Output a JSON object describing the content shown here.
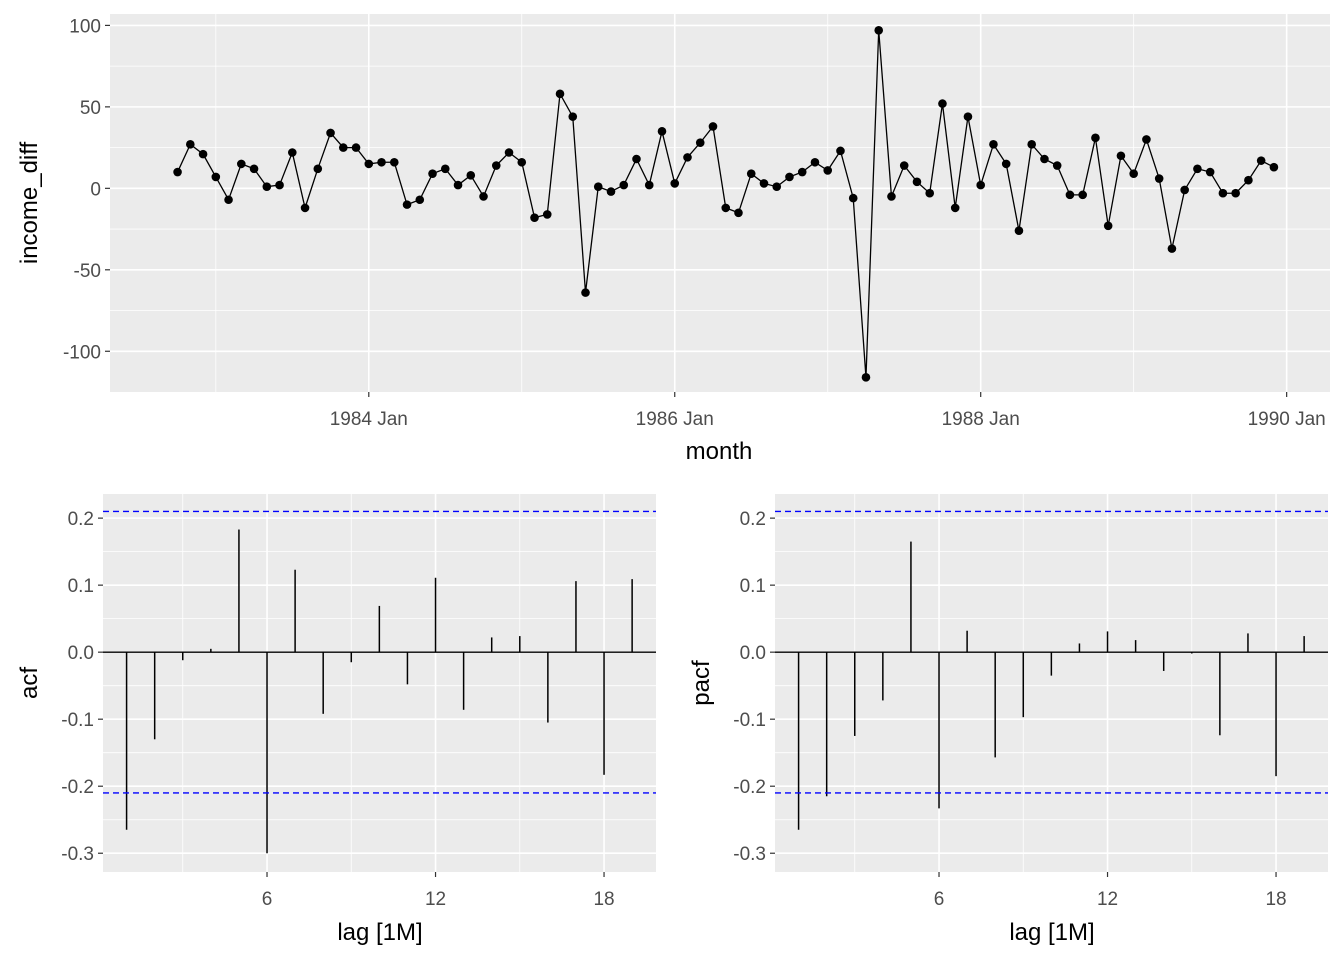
{
  "chart_data": [
    {
      "type": "line",
      "title": "",
      "xlabel": "month",
      "ylabel": "income_diff",
      "x_start": "1982 Oct",
      "x_end": "1989 Dec",
      "frequency": "monthly",
      "ylim": [
        -125,
        107
      ],
      "xticks": [
        "1984 Jan",
        "1986 Jan",
        "1988 Jan",
        "1990 Jan"
      ],
      "yticks": [
        -100,
        -50,
        0,
        50,
        100
      ],
      "grid": true,
      "values": [
        10,
        27,
        21,
        7,
        -7,
        15,
        12,
        1,
        2,
        22,
        -12,
        12,
        34,
        25,
        25,
        15,
        16,
        16,
        -10,
        -7,
        9,
        12,
        2,
        8,
        -5,
        14,
        22,
        16,
        -18,
        -16,
        58,
        44,
        -64,
        1,
        -2,
        2,
        18,
        2,
        35,
        3,
        19,
        28,
        38,
        -12,
        -15,
        9,
        3,
        1,
        7,
        10,
        16,
        11,
        23,
        -6,
        -116,
        97,
        -5,
        14,
        4,
        -3,
        52,
        -12,
        44,
        2,
        27,
        15,
        -26,
        27,
        18,
        14,
        -4,
        -4,
        31,
        -23,
        20,
        9,
        30,
        6,
        -37,
        -1,
        12,
        10,
        -3,
        -3,
        5,
        17,
        13
      ]
    },
    {
      "type": "bar",
      "title": "",
      "xlabel": "lag [1M]",
      "ylabel": "acf",
      "lags": [
        1,
        2,
        3,
        4,
        5,
        6,
        7,
        8,
        9,
        10,
        11,
        12,
        13,
        14,
        15,
        16,
        17,
        18,
        19
      ],
      "values": [
        -0.265,
        -0.13,
        -0.012,
        0.005,
        0.183,
        -0.3,
        0.123,
        -0.092,
        -0.015,
        0.069,
        -0.048,
        0.111,
        -0.086,
        0.022,
        0.024,
        -0.105,
        0.106,
        -0.183,
        0.109
      ],
      "confidence_bound": 0.21,
      "xticks": [
        6,
        12,
        18
      ],
      "yticks": [
        "-0.3",
        "-0.2",
        "-0.1",
        "0.0",
        "0.1",
        "0.2"
      ],
      "ylim": [
        -0.328,
        0.236
      ],
      "xlim": [
        0.16,
        19.85
      ],
      "grid": true
    },
    {
      "type": "bar",
      "title": "",
      "xlabel": "lag [1M]",
      "ylabel": "pacf",
      "lags": [
        1,
        2,
        3,
        4,
        5,
        6,
        7,
        8,
        9,
        10,
        11,
        12,
        13,
        14,
        15,
        16,
        17,
        18,
        19
      ],
      "values": [
        -0.265,
        -0.215,
        -0.125,
        -0.072,
        0.165,
        -0.233,
        0.032,
        -0.157,
        -0.097,
        -0.035,
        0.013,
        0.031,
        0.018,
        -0.028,
        -0.002,
        -0.124,
        0.028,
        -0.185,
        0.024
      ],
      "confidence_bound": 0.21,
      "xticks": [
        6,
        12,
        18
      ],
      "yticks": [
        "-0.3",
        "-0.2",
        "-0.1",
        "0.0",
        "0.1",
        "0.2"
      ],
      "ylim": [
        -0.328,
        0.236
      ],
      "xlim": [
        0.16,
        19.85
      ],
      "grid": true
    }
  ],
  "colors": {
    "panel": "#ebebeb",
    "grid": "#ffffff",
    "series": "#000000",
    "ci": "#0000ff"
  }
}
